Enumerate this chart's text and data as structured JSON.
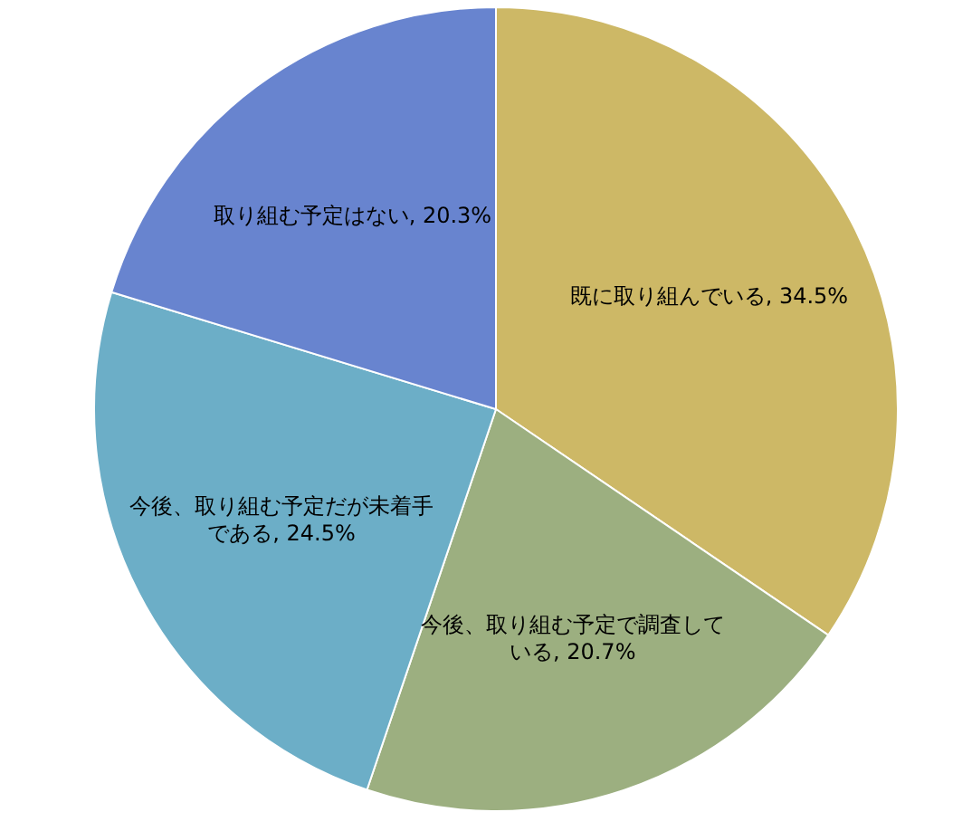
{
  "chart_data": {
    "type": "pie",
    "categories": [
      "既に取り組んでいる",
      "今後、取り組む予定で調査している",
      "今後、取り組む予定だが未着手である",
      "取り組む予定はない"
    ],
    "values": [
      34.5,
      20.7,
      24.5,
      20.3
    ],
    "value_labels": [
      ", 34.5%",
      ", 20.7%",
      ", 24.5%",
      ", 20.3%"
    ],
    "colors": [
      "#cdb866",
      "#9caf80",
      "#6caec7",
      "#6884cf"
    ]
  }
}
